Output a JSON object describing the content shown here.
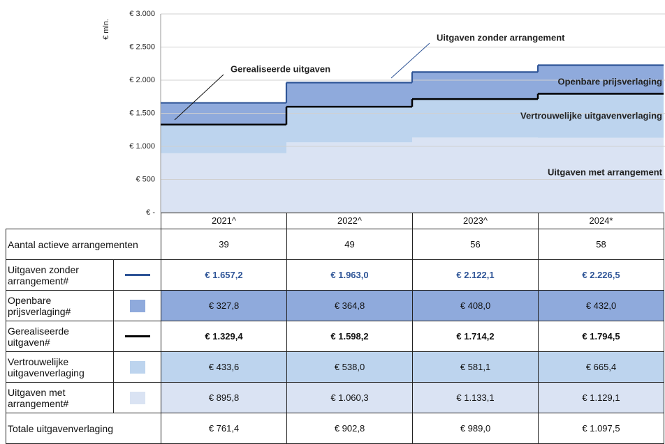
{
  "chart_data": {
    "type": "step_area",
    "ylabel": "€ mln.",
    "categories": [
      "2021^",
      "2022^",
      "2023^",
      "2024*"
    ],
    "ylim": [
      0,
      3000
    ],
    "yticks": [
      {
        "value": 0,
        "label": "€ -"
      },
      {
        "value": 500,
        "label": "€ 500"
      },
      {
        "value": 1000,
        "label": "€ 1.000"
      },
      {
        "value": 1500,
        "label": "€ 1.500"
      },
      {
        "value": 2000,
        "label": "€ 2.000"
      },
      {
        "value": 2500,
        "label": "€ 2.500"
      },
      {
        "value": 3000,
        "label": "€ 3.000"
      }
    ],
    "grid": true,
    "series": [
      {
        "name": "Uitgaven zonder arrangement#",
        "kind": "line",
        "color": "#2f5597",
        "bold": true,
        "text_color": "#2f5597",
        "values": [
          1657.2,
          1963.0,
          2122.1,
          2226.5
        ],
        "value_labels": [
          "€ 1.657,2",
          "€ 1.963,0",
          "€ 2.122,1",
          "€ 2.226,5"
        ]
      },
      {
        "name": "Openbare prijsverlaging#",
        "kind": "area",
        "color": "#8faadc",
        "values": [
          327.8,
          364.8,
          408.0,
          432.0
        ],
        "value_labels": [
          "€ 327,8",
          "€ 364,8",
          "€ 408,0",
          "€ 432,0"
        ]
      },
      {
        "name": "Gerealiseerde uitgaven#",
        "kind": "line",
        "color": "#000000",
        "bold": true,
        "values": [
          1329.4,
          1598.2,
          1714.2,
          1794.5
        ],
        "value_labels": [
          "€ 1.329,4",
          "€ 1.598,2",
          "€ 1.714,2",
          "€ 1.794,5"
        ]
      },
      {
        "name": "Vertrouwelijke uitgavenverlaging",
        "kind": "area",
        "color": "#bdd4ee",
        "values": [
          433.6,
          538.0,
          581.1,
          665.4
        ],
        "value_labels": [
          "€ 433,6",
          "€ 538,0",
          "€ 581,1",
          "€ 665,4"
        ]
      },
      {
        "name": "Uitgaven met arrangement#",
        "kind": "area",
        "color": "#dae3f3",
        "values": [
          895.8,
          1060.3,
          1133.1,
          1129.1
        ],
        "value_labels": [
          "€ 895,8",
          "€ 1.060,3",
          "€ 1.133,1",
          "€ 1.129,1"
        ]
      }
    ],
    "annotations": [
      "Uitgaven zonder arrangement",
      "Gerealiseerde uitgaven",
      "Openbare prijsverlaging",
      "Vertrouwelijke uitgavenverlaging",
      "Uitgaven met arrangement"
    ]
  },
  "table": {
    "top_row": {
      "label": "Aantal actieve arrangementen",
      "cells": [
        39,
        49,
        56,
        58
      ]
    },
    "bottom_row": {
      "label": "Totale uitgavenverlaging",
      "cells": [
        "€ 761,4",
        "€ 902,8",
        "€ 989,0",
        "€ 1.097,5"
      ]
    }
  }
}
